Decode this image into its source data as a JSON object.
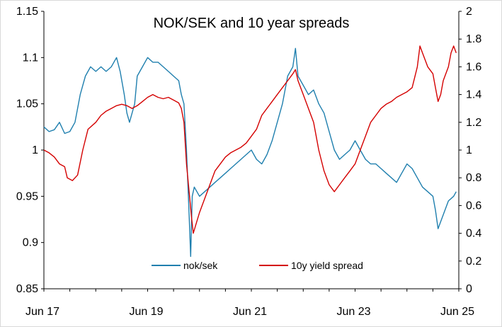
{
  "chart_data": {
    "type": "line",
    "title": "NOK/SEK and 10 year spreads",
    "x_axis": {
      "ticks": [
        "Jun 17",
        "Jun 19",
        "Jun 21",
        "Jun 23",
        "Jun 25"
      ],
      "range": [
        2017.5,
        2025.5
      ]
    },
    "y_left": {
      "ticks": [
        "0.85",
        "0.9",
        "0.95",
        "1",
        "1.05",
        "1.1",
        "1.15"
      ],
      "range": [
        0.85,
        1.15
      ]
    },
    "y_right": {
      "ticks": [
        "0",
        "0.2",
        "0.4",
        "0.6",
        "0.8",
        "1",
        "1.2",
        "1.4",
        "1.6",
        "1.8",
        "2"
      ],
      "range": [
        0,
        2
      ]
    },
    "grid": false,
    "legend_position": "bottom-center",
    "series": [
      {
        "name": "nok/sek",
        "axis": "left",
        "color": "#1f7fae",
        "points": [
          [
            2017.5,
            1.025
          ],
          [
            2017.6,
            1.02
          ],
          [
            2017.7,
            1.022
          ],
          [
            2017.8,
            1.03
          ],
          [
            2017.9,
            1.018
          ],
          [
            2018.0,
            1.02
          ],
          [
            2018.1,
            1.03
          ],
          [
            2018.2,
            1.06
          ],
          [
            2018.3,
            1.08
          ],
          [
            2018.4,
            1.09
          ],
          [
            2018.5,
            1.085
          ],
          [
            2018.6,
            1.09
          ],
          [
            2018.7,
            1.085
          ],
          [
            2018.8,
            1.09
          ],
          [
            2018.9,
            1.1
          ],
          [
            2018.97,
            1.085
          ],
          [
            2019.05,
            1.06
          ],
          [
            2019.1,
            1.04
          ],
          [
            2019.15,
            1.03
          ],
          [
            2019.25,
            1.05
          ],
          [
            2019.3,
            1.08
          ],
          [
            2019.4,
            1.09
          ],
          [
            2019.5,
            1.1
          ],
          [
            2019.6,
            1.095
          ],
          [
            2019.7,
            1.095
          ],
          [
            2019.8,
            1.09
          ],
          [
            2019.9,
            1.085
          ],
          [
            2020.0,
            1.08
          ],
          [
            2020.1,
            1.075
          ],
          [
            2020.15,
            1.06
          ],
          [
            2020.2,
            1.05
          ],
          [
            2020.25,
            1.0
          ],
          [
            2020.3,
            0.93
          ],
          [
            2020.33,
            0.885
          ],
          [
            2020.36,
            0.95
          ],
          [
            2020.4,
            0.96
          ],
          [
            2020.5,
            0.95
          ],
          [
            2020.6,
            0.955
          ],
          [
            2020.7,
            0.96
          ],
          [
            2020.8,
            0.965
          ],
          [
            2020.9,
            0.97
          ],
          [
            2021.0,
            0.975
          ],
          [
            2021.1,
            0.98
          ],
          [
            2021.2,
            0.985
          ],
          [
            2021.3,
            0.99
          ],
          [
            2021.4,
            0.995
          ],
          [
            2021.5,
            1.0
          ],
          [
            2021.6,
            0.99
          ],
          [
            2021.7,
            0.985
          ],
          [
            2021.8,
            0.995
          ],
          [
            2021.9,
            1.01
          ],
          [
            2022.0,
            1.03
          ],
          [
            2022.1,
            1.05
          ],
          [
            2022.2,
            1.08
          ],
          [
            2022.3,
            1.09
          ],
          [
            2022.35,
            1.11
          ],
          [
            2022.4,
            1.08
          ],
          [
            2022.5,
            1.07
          ],
          [
            2022.6,
            1.06
          ],
          [
            2022.7,
            1.065
          ],
          [
            2022.8,
            1.05
          ],
          [
            2022.9,
            1.04
          ],
          [
            2023.0,
            1.02
          ],
          [
            2023.1,
            1.0
          ],
          [
            2023.2,
            0.99
          ],
          [
            2023.3,
            0.995
          ],
          [
            2023.4,
            1.0
          ],
          [
            2023.5,
            1.01
          ],
          [
            2023.6,
            1.0
          ],
          [
            2023.7,
            0.99
          ],
          [
            2023.8,
            0.985
          ],
          [
            2023.9,
            0.985
          ],
          [
            2024.0,
            0.98
          ],
          [
            2024.1,
            0.975
          ],
          [
            2024.2,
            0.97
          ],
          [
            2024.3,
            0.965
          ],
          [
            2024.4,
            0.975
          ],
          [
            2024.5,
            0.985
          ],
          [
            2024.6,
            0.98
          ],
          [
            2024.7,
            0.97
          ],
          [
            2024.8,
            0.96
          ],
          [
            2024.9,
            0.955
          ],
          [
            2025.0,
            0.95
          ],
          [
            2025.05,
            0.935
          ],
          [
            2025.1,
            0.915
          ],
          [
            2025.2,
            0.93
          ],
          [
            2025.3,
            0.945
          ],
          [
            2025.4,
            0.95
          ],
          [
            2025.45,
            0.955
          ]
        ]
      },
      {
        "name": "10y yield spread",
        "axis": "right",
        "color": "#d40000",
        "points": [
          [
            2017.5,
            1.0
          ],
          [
            2017.6,
            0.98
          ],
          [
            2017.7,
            0.95
          ],
          [
            2017.8,
            0.9
          ],
          [
            2017.9,
            0.88
          ],
          [
            2017.95,
            0.8
          ],
          [
            2018.05,
            0.78
          ],
          [
            2018.15,
            0.82
          ],
          [
            2018.25,
            1.0
          ],
          [
            2018.35,
            1.15
          ],
          [
            2018.5,
            1.2
          ],
          [
            2018.6,
            1.25
          ],
          [
            2018.7,
            1.28
          ],
          [
            2018.8,
            1.3
          ],
          [
            2018.9,
            1.32
          ],
          [
            2019.0,
            1.33
          ],
          [
            2019.1,
            1.32
          ],
          [
            2019.2,
            1.3
          ],
          [
            2019.3,
            1.32
          ],
          [
            2019.4,
            1.35
          ],
          [
            2019.5,
            1.38
          ],
          [
            2019.6,
            1.4
          ],
          [
            2019.7,
            1.38
          ],
          [
            2019.8,
            1.37
          ],
          [
            2019.9,
            1.38
          ],
          [
            2020.0,
            1.36
          ],
          [
            2020.1,
            1.34
          ],
          [
            2020.15,
            1.3
          ],
          [
            2020.2,
            1.2
          ],
          [
            2020.25,
            0.9
          ],
          [
            2020.3,
            0.7
          ],
          [
            2020.35,
            0.5
          ],
          [
            2020.38,
            0.4
          ],
          [
            2020.42,
            0.45
          ],
          [
            2020.5,
            0.55
          ],
          [
            2020.6,
            0.65
          ],
          [
            2020.7,
            0.75
          ],
          [
            2020.8,
            0.85
          ],
          [
            2020.9,
            0.9
          ],
          [
            2021.0,
            0.95
          ],
          [
            2021.1,
            0.98
          ],
          [
            2021.2,
            1.0
          ],
          [
            2021.3,
            1.02
          ],
          [
            2021.4,
            1.05
          ],
          [
            2021.5,
            1.1
          ],
          [
            2021.6,
            1.15
          ],
          [
            2021.7,
            1.25
          ],
          [
            2021.8,
            1.3
          ],
          [
            2021.9,
            1.35
          ],
          [
            2022.0,
            1.4
          ],
          [
            2022.1,
            1.45
          ],
          [
            2022.2,
            1.5
          ],
          [
            2022.3,
            1.55
          ],
          [
            2022.35,
            1.58
          ],
          [
            2022.4,
            1.5
          ],
          [
            2022.5,
            1.4
          ],
          [
            2022.6,
            1.3
          ],
          [
            2022.7,
            1.2
          ],
          [
            2022.8,
            1.0
          ],
          [
            2022.9,
            0.85
          ],
          [
            2023.0,
            0.75
          ],
          [
            2023.1,
            0.7
          ],
          [
            2023.2,
            0.75
          ],
          [
            2023.3,
            0.8
          ],
          [
            2023.4,
            0.85
          ],
          [
            2023.5,
            0.9
          ],
          [
            2023.6,
            1.0
          ],
          [
            2023.7,
            1.1
          ],
          [
            2023.8,
            1.2
          ],
          [
            2023.9,
            1.25
          ],
          [
            2024.0,
            1.3
          ],
          [
            2024.1,
            1.33
          ],
          [
            2024.2,
            1.35
          ],
          [
            2024.3,
            1.38
          ],
          [
            2024.4,
            1.4
          ],
          [
            2024.5,
            1.42
          ],
          [
            2024.6,
            1.45
          ],
          [
            2024.7,
            1.6
          ],
          [
            2024.75,
            1.75
          ],
          [
            2024.8,
            1.7
          ],
          [
            2024.9,
            1.6
          ],
          [
            2025.0,
            1.55
          ],
          [
            2025.05,
            1.45
          ],
          [
            2025.1,
            1.35
          ],
          [
            2025.15,
            1.4
          ],
          [
            2025.2,
            1.5
          ],
          [
            2025.3,
            1.6
          ],
          [
            2025.35,
            1.7
          ],
          [
            2025.4,
            1.75
          ],
          [
            2025.45,
            1.7
          ]
        ]
      }
    ]
  }
}
